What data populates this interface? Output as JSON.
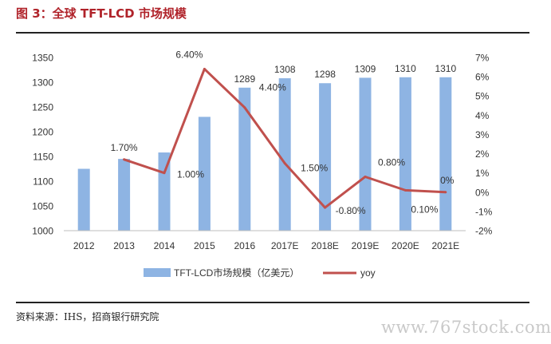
{
  "header": {
    "title": "图 3：全球 TFT-LCD 市场规模"
  },
  "footer": {
    "source": "资料来源：IHS，招商银行研究院",
    "watermark": "www.767stock.com"
  },
  "colors": {
    "bar": "#8eb4e3",
    "line": "#c0504d",
    "title": "#b0232a"
  },
  "chart_data": {
    "type": "bar",
    "categories": [
      "2012",
      "2013",
      "2014",
      "2015",
      "2016",
      "2017E",
      "2018E",
      "2019E",
      "2020E",
      "2021E"
    ],
    "series": [
      {
        "name": "TFT-LCD市场规模（亿美元）",
        "type": "bar",
        "axis": "left",
        "values": [
          1125,
          1145,
          1158,
          1230,
          1289,
          1308,
          1298,
          1309,
          1310,
          1310
        ],
        "labels": [
          "",
          "",
          "",
          "",
          "1289",
          "1308",
          "1298",
          "1309",
          "1310",
          "1310"
        ]
      },
      {
        "name": "yoy",
        "type": "line",
        "axis": "right",
        "values": [
          null,
          1.7,
          1.0,
          6.4,
          4.4,
          1.5,
          -0.8,
          0.8,
          0.1,
          0.0
        ],
        "labels": [
          "",
          "1.70%",
          "1.00%",
          "6.40%",
          "4.40%",
          "1.50%",
          "-0.80%",
          "0.80%",
          "0.10%",
          "0%"
        ]
      }
    ],
    "y_left": {
      "min": 1000,
      "max": 1350,
      "ticks": [
        "1000",
        "1050",
        "1100",
        "1150",
        "1200",
        "1250",
        "1300",
        "1350"
      ]
    },
    "y_right": {
      "min": -2,
      "max": 7,
      "ticks": [
        "-2%",
        "-1%",
        "0%",
        "1%",
        "2%",
        "3%",
        "4%",
        "5%",
        "6%",
        "7%"
      ]
    },
    "legend_position": "bottom",
    "grid": false
  }
}
